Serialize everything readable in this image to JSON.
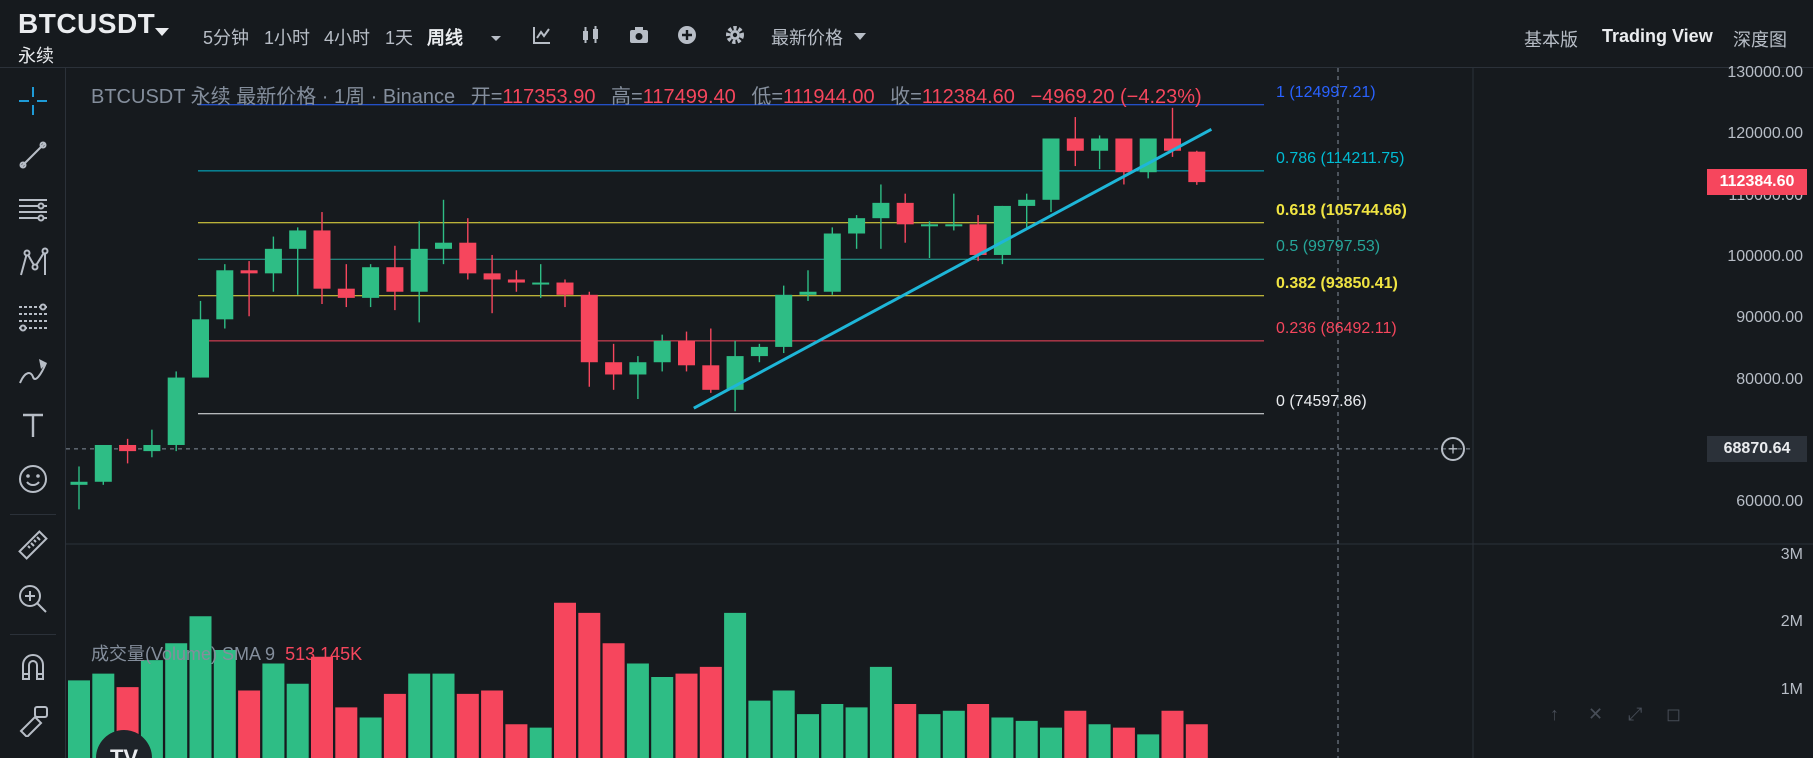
{
  "header": {
    "symbol": "BTCUSDT",
    "contract_type": "永续",
    "timeframes": [
      {
        "label": "5分钟",
        "active": false
      },
      {
        "label": "1小时",
        "active": false
      },
      {
        "label": "4小时",
        "active": false
      },
      {
        "label": "1天",
        "active": false
      },
      {
        "label": "周线",
        "active": true
      }
    ],
    "price_type": "最新价格",
    "views": [
      {
        "label": "基本版",
        "active": false
      },
      {
        "label": "Trading View",
        "active": true
      },
      {
        "label": "深度图",
        "active": false
      }
    ],
    "toolbar_icons": [
      "chevron-down-icon",
      "indicators-icon",
      "candlestick-type-icon",
      "camera-icon",
      "plus-circle-icon",
      "gear-icon"
    ]
  },
  "left_tools": [
    "crosshair-icon",
    "trend-line-icon",
    "horizontal-lines-icon",
    "pattern-icon",
    "fib-retracement-icon",
    "brush-icon",
    "text-icon",
    "emoji-icon",
    "ruler-icon",
    "zoom-in-icon",
    "magnet-icon",
    "lock-draw-icon"
  ],
  "legend": {
    "title": "BTCUSDT 永续 最新价格 · 1周 · Binance",
    "open_label": "开=",
    "open": "117353.90",
    "high_label": "高=",
    "high": "117499.40",
    "low_label": "低=",
    "low": "111944.00",
    "close_label": "收=",
    "close": "112384.60",
    "change": "−4969.20 (−4.23%)"
  },
  "fib_levels": [
    {
      "label": "1 (124997.21)",
      "value": 124997.21,
      "color": "#2962FF"
    },
    {
      "label": "0.786 (114211.75)",
      "value": 114211.75,
      "color": "#00BCD4"
    },
    {
      "label": "0.618 (105744.66)",
      "value": 105744.66,
      "color": "#F0E442"
    },
    {
      "label": "0.5 (99797.53)",
      "value": 99797.53,
      "color": "#26A69A"
    },
    {
      "label": "0.382 (93850.41)",
      "value": 93850.41,
      "color": "#F0E442"
    },
    {
      "label": "0.236 (86492.11)",
      "value": 86492.11,
      "color": "#F6465D"
    },
    {
      "label": "0 (74597.86)",
      "value": 74597.86,
      "color": "#EAECEF"
    }
  ],
  "price_axis": [
    "130000.00",
    "120000.00",
    "110000.00",
    "100000.00",
    "90000.00",
    "80000.00",
    "60000.00"
  ],
  "current_price_tag": "112384.60",
  "crosshair_price": "68870.64",
  "volume_legend": {
    "label": "成交量(Volume)  SMA 9",
    "value": "513.145K"
  },
  "volume_axis": [
    "3M",
    "2M",
    "1M"
  ],
  "tv_logo": "TV",
  "chart_data": {
    "type": "candlestick",
    "interval": "1周",
    "colors": {
      "up": "#2EBD85",
      "down": "#F6465D"
    },
    "candles": [
      {
        "o": 63000,
        "h": 66000,
        "l": 59000,
        "c": 63500
      },
      {
        "o": 63500,
        "h": 69500,
        "l": 63000,
        "c": 69500
      },
      {
        "o": 69500,
        "h": 70500,
        "l": 66500,
        "c": 68500
      },
      {
        "o": 68500,
        "h": 72000,
        "l": 67500,
        "c": 69500
      },
      {
        "o": 69500,
        "h": 81500,
        "l": 68500,
        "c": 80500
      },
      {
        "o": 80500,
        "h": 93000,
        "l": 80500,
        "c": 90000
      },
      {
        "o": 90000,
        "h": 99000,
        "l": 88500,
        "c": 98000
      },
      {
        "o": 98000,
        "h": 99500,
        "l": 90500,
        "c": 97500
      },
      {
        "o": 97500,
        "h": 103500,
        "l": 94500,
        "c": 101500
      },
      {
        "o": 101500,
        "h": 105000,
        "l": 94000,
        "c": 104500
      },
      {
        "o": 104500,
        "h": 107500,
        "l": 92500,
        "c": 95000
      },
      {
        "o": 95000,
        "h": 99000,
        "l": 92000,
        "c": 93500
      },
      {
        "o": 93500,
        "h": 99000,
        "l": 92000,
        "c": 98500
      },
      {
        "o": 98500,
        "h": 102000,
        "l": 91500,
        "c": 94500
      },
      {
        "o": 94500,
        "h": 106000,
        "l": 89500,
        "c": 101500
      },
      {
        "o": 101500,
        "h": 109500,
        "l": 99000,
        "c": 102500
      },
      {
        "o": 102500,
        "h": 106500,
        "l": 96500,
        "c": 97500
      },
      {
        "o": 97500,
        "h": 100500,
        "l": 91000,
        "c": 96500
      },
      {
        "o": 96500,
        "h": 98000,
        "l": 94500,
        "c": 96000
      },
      {
        "o": 96000,
        "h": 99000,
        "l": 93500,
        "c": 96000
      },
      {
        "o": 96000,
        "h": 96500,
        "l": 92000,
        "c": 94000
      },
      {
        "o": 94000,
        "h": 94500,
        "l": 79000,
        "c": 83000
      },
      {
        "o": 83000,
        "h": 86000,
        "l": 78500,
        "c": 81000
      },
      {
        "o": 81000,
        "h": 84000,
        "l": 77000,
        "c": 83000
      },
      {
        "o": 83000,
        "h": 87500,
        "l": 81500,
        "c": 86500
      },
      {
        "o": 86500,
        "h": 88000,
        "l": 81500,
        "c": 82500
      },
      {
        "o": 82500,
        "h": 88500,
        "l": 78000,
        "c": 78500
      },
      {
        "o": 78500,
        "h": 86500,
        "l": 75000,
        "c": 84000
      },
      {
        "o": 84000,
        "h": 86000,
        "l": 83000,
        "c": 85500
      },
      {
        "o": 85500,
        "h": 95500,
        "l": 84500,
        "c": 94000
      },
      {
        "o": 94000,
        "h": 98000,
        "l": 93000,
        "c": 94500
      },
      {
        "o": 94500,
        "h": 105000,
        "l": 94000,
        "c": 104000
      },
      {
        "o": 104000,
        "h": 107000,
        "l": 101500,
        "c": 106500
      },
      {
        "o": 106500,
        "h": 112000,
        "l": 101500,
        "c": 109000
      },
      {
        "o": 109000,
        "h": 110500,
        "l": 102500,
        "c": 105500
      },
      {
        "o": 105500,
        "h": 106000,
        "l": 100000,
        "c": 105500
      },
      {
        "o": 105500,
        "h": 110500,
        "l": 104500,
        "c": 105500
      },
      {
        "o": 105500,
        "h": 107000,
        "l": 99500,
        "c": 100500
      },
      {
        "o": 100500,
        "h": 108500,
        "l": 99000,
        "c": 108500
      },
      {
        "o": 108500,
        "h": 110500,
        "l": 105000,
        "c": 109500
      },
      {
        "o": 109500,
        "h": 119500,
        "l": 107500,
        "c": 119500
      },
      {
        "o": 119500,
        "h": 123000,
        "l": 115000,
        "c": 117500
      },
      {
        "o": 117500,
        "h": 120000,
        "l": 114500,
        "c": 119500
      },
      {
        "o": 119500,
        "h": 119500,
        "l": 112000,
        "c": 114000
      },
      {
        "o": 114000,
        "h": 119500,
        "l": 113000,
        "c": 119500
      },
      {
        "o": 119500,
        "h": 124500,
        "l": 116500,
        "c": 117500
      },
      {
        "o": 117353.9,
        "h": 117499.4,
        "l": 111944.0,
        "c": 112384.6
      }
    ],
    "volume_M": [
      1.15,
      1.25,
      1.05,
      1.45,
      1.7,
      2.1,
      1.6,
      1.0,
      1.4,
      1.1,
      1.5,
      0.75,
      0.6,
      0.95,
      1.25,
      1.25,
      0.95,
      1.0,
      0.5,
      0.45,
      2.3,
      2.15,
      1.7,
      1.4,
      1.2,
      1.25,
      1.35,
      2.15,
      0.85,
      1.0,
      0.65,
      0.8,
      0.75,
      1.35,
      0.8,
      0.65,
      0.7,
      0.8,
      0.6,
      0.55,
      0.45,
      0.7,
      0.5,
      0.45,
      0.35,
      0.7,
      0.5
    ],
    "y_range": [
      54000,
      131000
    ],
    "volume_range_M": [
      0,
      3.2
    ],
    "trendline": {
      "from": {
        "bar": 25.3,
        "price": 75500
      },
      "to": {
        "bar": 46.6,
        "price": 121000
      }
    }
  }
}
